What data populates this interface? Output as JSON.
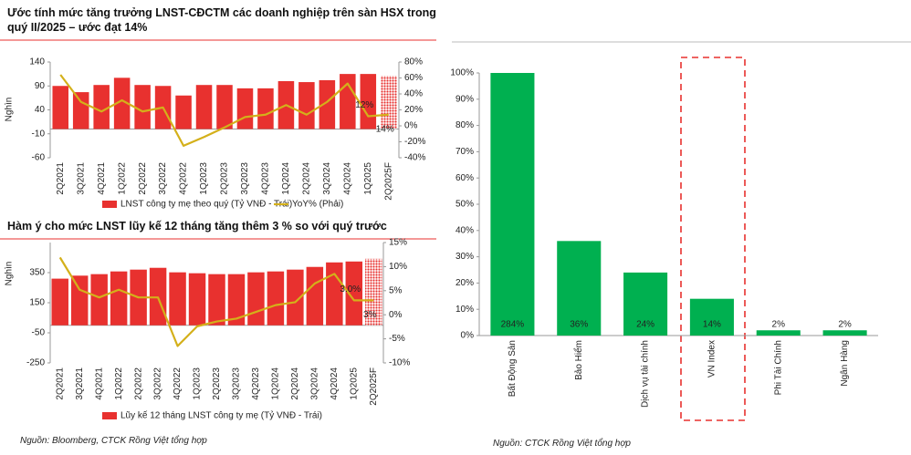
{
  "chart_data": [
    {
      "type": "bar",
      "title": "Ước tính mức tăng trưởng LNST-CĐCTM các doanh nghiệp trên sàn HSX trong quý II/2025 – ước đạt 14%",
      "y_label": "Nghìn",
      "categories": [
        "2Q2021",
        "3Q2021",
        "4Q2021",
        "1Q2022",
        "2Q2022",
        "3Q2022",
        "4Q2022",
        "1Q2023",
        "2Q2023",
        "3Q2023",
        "4Q2023",
        "1Q2024",
        "2Q2024",
        "3Q2024",
        "4Q2024",
        "1Q2025",
        "2Q2025F"
      ],
      "series": [
        {
          "name": "LNST công ty mẹ theo quý (Tỷ VNĐ - Trái)",
          "type": "bar",
          "color": "#e8312f",
          "values": [
            90,
            77,
            92,
            107,
            92,
            90,
            70,
            92,
            92,
            85,
            85,
            100,
            98,
            102,
            115,
            115,
            111
          ]
        },
        {
          "name": "YoY% (Phải)",
          "type": "line",
          "axis": "y2",
          "color": "#d4b01a",
          "values": [
            64,
            30,
            18,
            32,
            18,
            23,
            -25,
            -14,
            -2,
            11,
            14,
            26,
            14,
            30,
            53,
            12,
            14
          ],
          "value_labels": [
            null,
            null,
            null,
            null,
            null,
            null,
            null,
            null,
            null,
            null,
            null,
            null,
            null,
            null,
            null,
            "12%",
            "14%"
          ]
        }
      ],
      "ylim": [
        -60,
        140
      ],
      "yticks": [
        -60,
        -10,
        40,
        90,
        140
      ],
      "y2lim": [
        -40,
        80
      ],
      "y2ticks": [
        {
          "value": -40,
          "label": "-40%"
        },
        {
          "value": -20,
          "label": "-20%"
        },
        {
          "value": 0,
          "label": "0%"
        },
        {
          "value": 20,
          "label": "20%"
        },
        {
          "value": 40,
          "label": "40%"
        },
        {
          "value": 60,
          "label": "60%"
        },
        {
          "value": 80,
          "label": "80%"
        }
      ],
      "grid": false
    },
    {
      "type": "bar",
      "title": "Hàm ý cho mức LNST lũy kế 12 tháng tăng thêm 3 % so với quý trước",
      "y_label": "Nghìn",
      "categories": [
        "2Q2021",
        "3Q2021",
        "4Q2021",
        "1Q2022",
        "2Q2022",
        "3Q2022",
        "4Q2022",
        "1Q2023",
        "2Q2023",
        "3Q2023",
        "4Q2023",
        "1Q2024",
        "2Q2024",
        "3Q2024",
        "4Q2024",
        "1Q2025",
        "2Q2025F"
      ],
      "series": [
        {
          "name": "Lũy kế 12 tháng LNST công ty mẹ (Tỷ VNĐ - Trái)",
          "type": "bar",
          "color": "#e8312f",
          "values": [
            310,
            330,
            340,
            358,
            370,
            382,
            352,
            346,
            340,
            340,
            352,
            358,
            370,
            388,
            418,
            424,
            442
          ]
        },
        {
          "type": "line",
          "axis": "y2",
          "color": "#d4b01a",
          "values": [
            11.9,
            5.2,
            3.6,
            5.2,
            3.6,
            3.6,
            -6.5,
            -2.4,
            -1.4,
            -0.8,
            0.6,
            2,
            2.6,
            6.5,
            8.5,
            3.0,
            3
          ],
          "value_labels": [
            null,
            null,
            null,
            null,
            null,
            null,
            null,
            null,
            null,
            null,
            null,
            null,
            null,
            null,
            null,
            "3.0%",
            "3%"
          ]
        }
      ],
      "ylim": [
        -250,
        550
      ],
      "yticks": [
        -250,
        -50,
        150,
        350
      ],
      "y2lim": [
        -10,
        15
      ],
      "y2ticks": [
        {
          "value": -10,
          "label": "-10%"
        },
        {
          "value": -5,
          "label": "-5%"
        },
        {
          "value": 0,
          "label": "0%"
        },
        {
          "value": 5,
          "label": "5%"
        },
        {
          "value": 10,
          "label": "10%"
        },
        {
          "value": 15,
          "label": "15%"
        }
      ],
      "grid": false
    },
    {
      "type": "bar",
      "categories": [
        "Bất Động Sản",
        "Bảo Hiểm",
        "Dịch vụ tài chính",
        "VN Index",
        "Phi Tài Chính",
        "Ngân Hàng"
      ],
      "values": [
        284,
        36,
        24,
        14,
        2,
        2
      ],
      "value_labels": [
        "284%",
        "36%",
        "24%",
        "14%",
        "2%",
        "2%"
      ],
      "color": "#00b050",
      "ylim": [
        0,
        100
      ],
      "yticks": [
        {
          "value": 0,
          "label": "0%"
        },
        {
          "value": 10,
          "label": "10%"
        },
        {
          "value": 20,
          "label": "20%"
        },
        {
          "value": 30,
          "label": "30%"
        },
        {
          "value": 40,
          "label": "40%"
        },
        {
          "value": 50,
          "label": "50%"
        },
        {
          "value": 60,
          "label": "60%"
        },
        {
          "value": 70,
          "label": "70%"
        },
        {
          "value": 80,
          "label": "80%"
        },
        {
          "value": 90,
          "label": "90%"
        },
        {
          "value": 100,
          "label": "100%"
        }
      ],
      "grid": false
    }
  ],
  "sources": [
    "Nguồn:  Bloomberg, CTCK Rồng Việt tổng hợp",
    "Nguồn:  CTCK Rồng Việt tổng hợp"
  ]
}
